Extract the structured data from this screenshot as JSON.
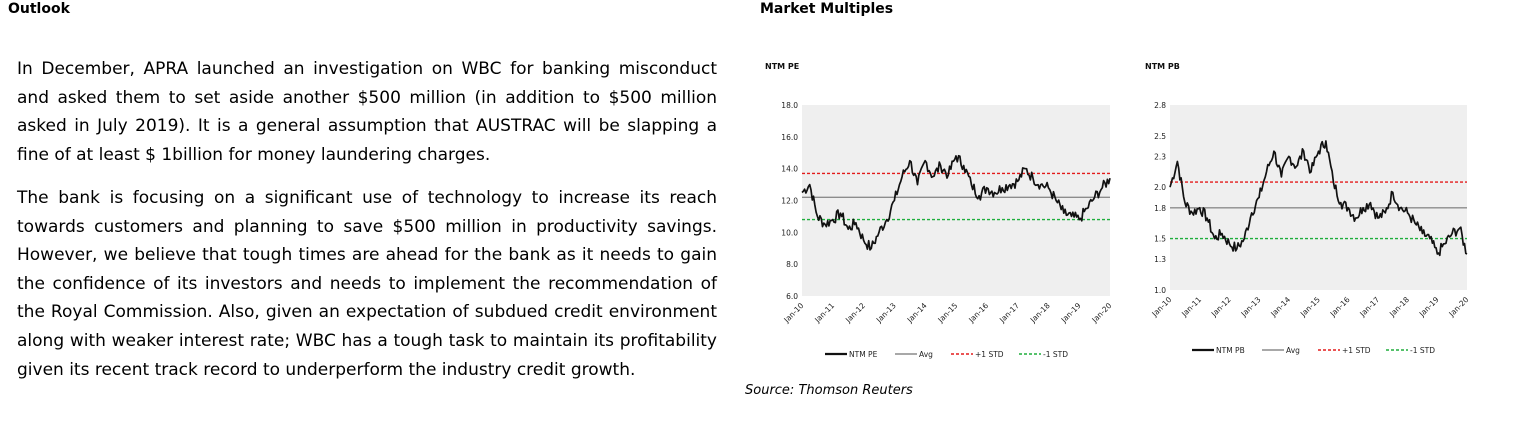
{
  "headings": {
    "outlook": "Outlook",
    "market_multiples": "Market Multiples"
  },
  "paragraphs": [
    "In December, APRA launched an investigation on WBC for banking misconduct and asked them to set aside another $500 million (in addition to $500 million asked in July 2019). It is a general assumption that AUSTRAC will be slapping a fine of at least $ 1billion for money laundering charges.",
    "The bank is focusing on a significant use of technology to increase its reach towards customers and planning to save $500 million in productivity savings. However, we believe that tough times are ahead for the bank as it needs to gain the confidence of its investors and needs to implement the recommendation of the Royal Commission. Also, given an expectation of subdued credit environment along with weaker interest rate; WBC has a tough task to maintain its profitability given its recent track record to underperform the industry credit growth."
  ],
  "source": "Source: Thomson Reuters",
  "colors": {
    "series": "#111111",
    "avg": "#8c8c8c",
    "plus_std": "#e31b1b",
    "minus_std": "#1fae3c",
    "plot_bg": "#efefef"
  },
  "chart_data": [
    {
      "type": "line",
      "title": "NTM PE",
      "x_ticks": [
        "Jan-10",
        "Jan-11",
        "Jan-12",
        "Jan-13",
        "Jan-14",
        "Jan-15",
        "Jan-16",
        "Jan-17",
        "Jan-18",
        "Jan-19",
        "Jan-20"
      ],
      "y_ticks": [
        "6.0",
        "8.0",
        "10.0",
        "12.0",
        "14.0",
        "16.0",
        "18.0"
      ],
      "ylim": [
        6.0,
        18.0
      ],
      "legend": [
        "NTM PE",
        "Avg",
        "+1 STD",
        "-1 STD"
      ],
      "legend_placement": "bottom",
      "grid": false,
      "series": [
        {
          "name": "NTM PE",
          "x": [
            "Jan-10",
            "Apr-10",
            "Jul-10",
            "Oct-10",
            "Jan-11",
            "Apr-11",
            "Jul-11",
            "Oct-11",
            "Jan-12",
            "Apr-12",
            "Jul-12",
            "Oct-12",
            "Jan-13",
            "Apr-13",
            "Jul-13",
            "Oct-13",
            "Jan-14",
            "Apr-14",
            "Jul-14",
            "Oct-14",
            "Jan-15",
            "Apr-15",
            "Jul-15",
            "Oct-15",
            "Jan-16",
            "Apr-16",
            "Jul-16",
            "Oct-16",
            "Jan-17",
            "Apr-17",
            "Jul-17",
            "Oct-17",
            "Jan-18",
            "Apr-18",
            "Jul-18",
            "Oct-18",
            "Jan-19",
            "Apr-19",
            "Jul-19",
            "Oct-19",
            "Jan-20"
          ],
          "values": [
            12.5,
            13.0,
            11.0,
            10.5,
            10.8,
            11.2,
            10.2,
            10.6,
            9.5,
            9.0,
            10.0,
            10.8,
            12.0,
            13.5,
            14.5,
            13.0,
            14.5,
            13.5,
            14.2,
            13.6,
            14.8,
            14.2,
            13.0,
            12.3,
            12.8,
            12.5,
            12.8,
            13.0,
            13.2,
            14.0,
            13.4,
            13.0,
            12.8,
            12.0,
            11.2,
            11.0,
            10.8,
            11.5,
            12.2,
            12.8,
            13.4
          ]
        }
      ],
      "reference_lines": [
        {
          "name": "Avg",
          "value": 12.2
        },
        {
          "name": "+1 STD",
          "value": 13.7
        },
        {
          "name": "-1 STD",
          "value": 10.8
        }
      ]
    },
    {
      "type": "line",
      "title": "NTM PB",
      "x_ticks": [
        "Jan-10",
        "Jan-11",
        "Jan-12",
        "Jan-13",
        "Jan-14",
        "Jan-15",
        "Jan-16",
        "Jan-17",
        "Jan-18",
        "Jan-19",
        "Jan-20"
      ],
      "y_ticks": [
        "1.0",
        "1.3",
        "1.5",
        "1.8",
        "2.0",
        "2.3",
        "2.5",
        "2.8"
      ],
      "ylim": [
        1.0,
        2.8
      ],
      "legend": [
        "NTM PB",
        "Avg",
        "+1 STD",
        "-1 STD"
      ],
      "legend_placement": "bottom",
      "grid": false,
      "series": [
        {
          "name": "NTM PB",
          "x": [
            "Jan-10",
            "Apr-10",
            "Jul-10",
            "Oct-10",
            "Jan-11",
            "Apr-11",
            "Jul-11",
            "Oct-11",
            "Jan-12",
            "Apr-12",
            "Jul-12",
            "Oct-12",
            "Jan-13",
            "Apr-13",
            "Jul-13",
            "Oct-13",
            "Jan-14",
            "Apr-14",
            "Jul-14",
            "Oct-14",
            "Jan-15",
            "Apr-15",
            "Jul-15",
            "Oct-15",
            "Jan-16",
            "Apr-16",
            "Jul-16",
            "Oct-16",
            "Jan-17",
            "Apr-17",
            "Jul-17",
            "Oct-17",
            "Jan-18",
            "Apr-18",
            "Jul-18",
            "Oct-18",
            "Jan-19",
            "Apr-19",
            "Jul-19",
            "Oct-19",
            "Jan-20"
          ],
          "values": [
            2.0,
            2.25,
            1.85,
            1.75,
            1.8,
            1.7,
            1.5,
            1.55,
            1.45,
            1.4,
            1.5,
            1.75,
            1.9,
            2.15,
            2.35,
            2.1,
            2.3,
            2.2,
            2.35,
            2.15,
            2.35,
            2.45,
            2.05,
            1.85,
            1.8,
            1.7,
            1.8,
            1.85,
            1.7,
            1.75,
            1.95,
            1.8,
            1.75,
            1.65,
            1.55,
            1.5,
            1.35,
            1.45,
            1.55,
            1.6,
            1.35
          ]
        }
      ],
      "reference_lines": [
        {
          "name": "Avg",
          "value": 1.8
        },
        {
          "name": "+1 STD",
          "value": 2.05
        },
        {
          "name": "-1 STD",
          "value": 1.5
        }
      ]
    }
  ]
}
